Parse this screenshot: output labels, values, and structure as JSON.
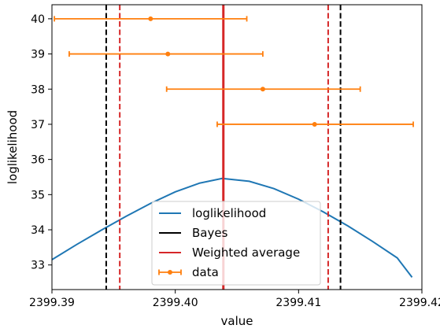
{
  "chart_data": {
    "type": "line",
    "xlabel": "value",
    "ylabel": "loglikelihood",
    "xlim": [
      2399.39,
      2399.42
    ],
    "ylim": [
      32.3,
      40.4
    ],
    "xticks": [
      2399.39,
      2399.4,
      2399.41,
      2399.42
    ],
    "xtick_labels": [
      "2399.39",
      "2399.40",
      "2399.41",
      "2399.42"
    ],
    "yticks": [
      33,
      34,
      35,
      36,
      37,
      38,
      39,
      40
    ],
    "ytick_labels": [
      "33",
      "34",
      "35",
      "36",
      "37",
      "38",
      "39",
      "40"
    ],
    "grid": false,
    "legend_position": "lower center",
    "series": [
      {
        "name": "loglikelihood",
        "kind": "curve",
        "color": "#1f77b4",
        "x": [
          2399.39,
          2399.392,
          2399.394,
          2399.396,
          2399.398,
          2399.4,
          2399.402,
          2399.4038,
          2399.406,
          2399.408,
          2399.41,
          2399.412,
          2399.414,
          2399.416,
          2399.418,
          2399.4192
        ],
        "y": [
          33.15,
          33.58,
          33.99,
          34.38,
          34.75,
          35.08,
          35.33,
          35.46,
          35.38,
          35.17,
          34.87,
          34.51,
          34.11,
          33.67,
          33.2,
          32.65
        ]
      },
      {
        "name": "Bayes",
        "kind": "vline",
        "color": "#000000",
        "style": "dashed",
        "x": [
          2399.3944,
          2399.4134
        ]
      },
      {
        "name": "Weighted average",
        "kind": "vline",
        "color": "#d62728",
        "style": "dashed",
        "x": [
          2399.3955,
          2399.4124
        ],
        "center": 2399.4039
      },
      {
        "name": "data",
        "kind": "errorbar",
        "color": "#ff7f0e",
        "points": [
          {
            "x": 2399.398,
            "y": 40,
            "xmin": 2399.3902,
            "xmax": 2399.4058
          },
          {
            "x": 2399.3994,
            "y": 39,
            "xmin": 2399.3914,
            "xmax": 2399.4071
          },
          {
            "x": 2399.4071,
            "y": 38,
            "xmin": 2399.3993,
            "xmax": 2399.415
          },
          {
            "x": 2399.4113,
            "y": 37,
            "xmin": 2399.4034,
            "xmax": 2399.4193
          }
        ]
      }
    ]
  }
}
